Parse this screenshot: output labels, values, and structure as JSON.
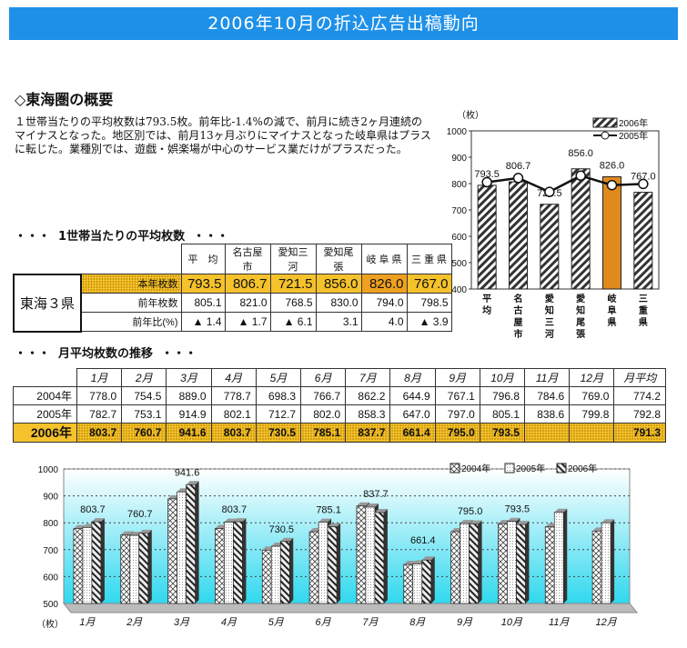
{
  "title": "2006年10月の折込広告出稿動向",
  "section1_title": "◇東海圏の概要",
  "paragraph": "１世帯当たりの平均枚数は793.5枚。前年比-1.4%の減で、前月に続き2ヶ月連続のマイナスとなった。地区別では、前月13ヶ月ぶりにマイナスとなった岐阜県はプラスに転じた。業種別では、遊戯・娯楽場が中心のサービス業だけがプラスだった。",
  "table1": {
    "heading": "・・・  1世帯当たりの平均枚数  ・・・",
    "group_label": "東海３県",
    "columns": [
      "平　均",
      "名古屋市",
      "愛知三河",
      "愛知尾張",
      "岐 阜 県",
      "三 重 県"
    ],
    "rows": [
      {
        "label": "本年枚数",
        "values": [
          "793.5",
          "806.7",
          "721.5",
          "856.0",
          "826.0",
          "767.0"
        ]
      },
      {
        "label": "前年枚数",
        "values": [
          "805.1",
          "821.0",
          "768.5",
          "830.0",
          "794.0",
          "798.5"
        ]
      },
      {
        "label": "前年比(%)",
        "values": [
          "▲ 1.4",
          "▲ 1.7",
          "▲ 6.1",
          "3.1",
          "4.0",
          "▲ 3.9"
        ]
      }
    ]
  },
  "table2": {
    "heading": "・・・  月平均枚数の推移  ・・・",
    "columns": [
      "1月",
      "2月",
      "3月",
      "4月",
      "5月",
      "6月",
      "7月",
      "8月",
      "9月",
      "10月",
      "11月",
      "12月",
      "月平均"
    ],
    "rows": [
      {
        "year": "2004年",
        "values": [
          "778.0",
          "754.5",
          "889.0",
          "778.7",
          "698.3",
          "766.7",
          "862.2",
          "644.9",
          "767.1",
          "796.8",
          "784.6",
          "769.0",
          "774.2"
        ]
      },
      {
        "year": "2005年",
        "values": [
          "782.7",
          "753.1",
          "914.9",
          "802.1",
          "712.7",
          "802.0",
          "858.3",
          "647.0",
          "797.0",
          "805.1",
          "838.6",
          "799.8",
          "792.8"
        ]
      },
      {
        "year": "2006年",
        "values": [
          "803.7",
          "760.7",
          "941.6",
          "803.7",
          "730.5",
          "785.1",
          "837.7",
          "661.4",
          "795.0",
          "793.5",
          "",
          "",
          "791.3"
        ]
      }
    ]
  },
  "chart_data": [
    {
      "type": "bar",
      "unit_label": "（枚）",
      "ylim": [
        400,
        1000
      ],
      "yticks": [
        "400",
        "500",
        "600",
        "700",
        "800",
        "900",
        "1000"
      ],
      "categories": [
        "平均",
        "名古屋市",
        "愛知三河",
        "愛知尾張",
        "岐阜県",
        "三重県"
      ],
      "series": [
        {
          "name": "2006年",
          "kind": "bar",
          "values": [
            793.5,
            806.7,
            721.5,
            856.0,
            826.0,
            767.0
          ]
        },
        {
          "name": "2005年",
          "kind": "line",
          "values": [
            805.1,
            821.0,
            768.5,
            830.0,
            794.0,
            798.5
          ]
        }
      ],
      "data_labels": [
        "793.5",
        "806.7",
        "721.5",
        "856.0",
        "826.0",
        "767.0"
      ],
      "highlight_category": "岐阜県",
      "highlight_color": "#e08a1e",
      "legend": "top-right"
    },
    {
      "type": "bar",
      "unit_label": "（枚）",
      "ylim": [
        500,
        1000
      ],
      "yticks": [
        "500",
        "600",
        "700",
        "800",
        "900",
        "1000"
      ],
      "categories": [
        "1月",
        "2月",
        "3月",
        "4月",
        "5月",
        "6月",
        "7月",
        "8月",
        "9月",
        "10月",
        "11月",
        "12月"
      ],
      "series": [
        {
          "name": "2004年",
          "values": [
            778.0,
            754.5,
            889.0,
            778.7,
            698.3,
            766.7,
            862.2,
            644.9,
            767.1,
            796.8,
            784.6,
            769.0
          ]
        },
        {
          "name": "2005年",
          "values": [
            782.7,
            753.1,
            914.9,
            802.1,
            712.7,
            802.0,
            858.3,
            647.0,
            797.0,
            805.1,
            838.6,
            799.8
          ]
        },
        {
          "name": "2006年",
          "values": [
            803.7,
            760.7,
            941.6,
            803.7,
            730.5,
            785.1,
            837.7,
            661.4,
            795.0,
            793.5,
            null,
            null
          ]
        }
      ],
      "data_labels": [
        "803.7",
        "760.7",
        "941.6",
        "803.7",
        "730.5",
        "785.1",
        "837.7",
        "661.4",
        "795.0",
        "793.5",
        "",
        ""
      ],
      "background": "cyan-gradient",
      "legend": "top-right"
    }
  ]
}
